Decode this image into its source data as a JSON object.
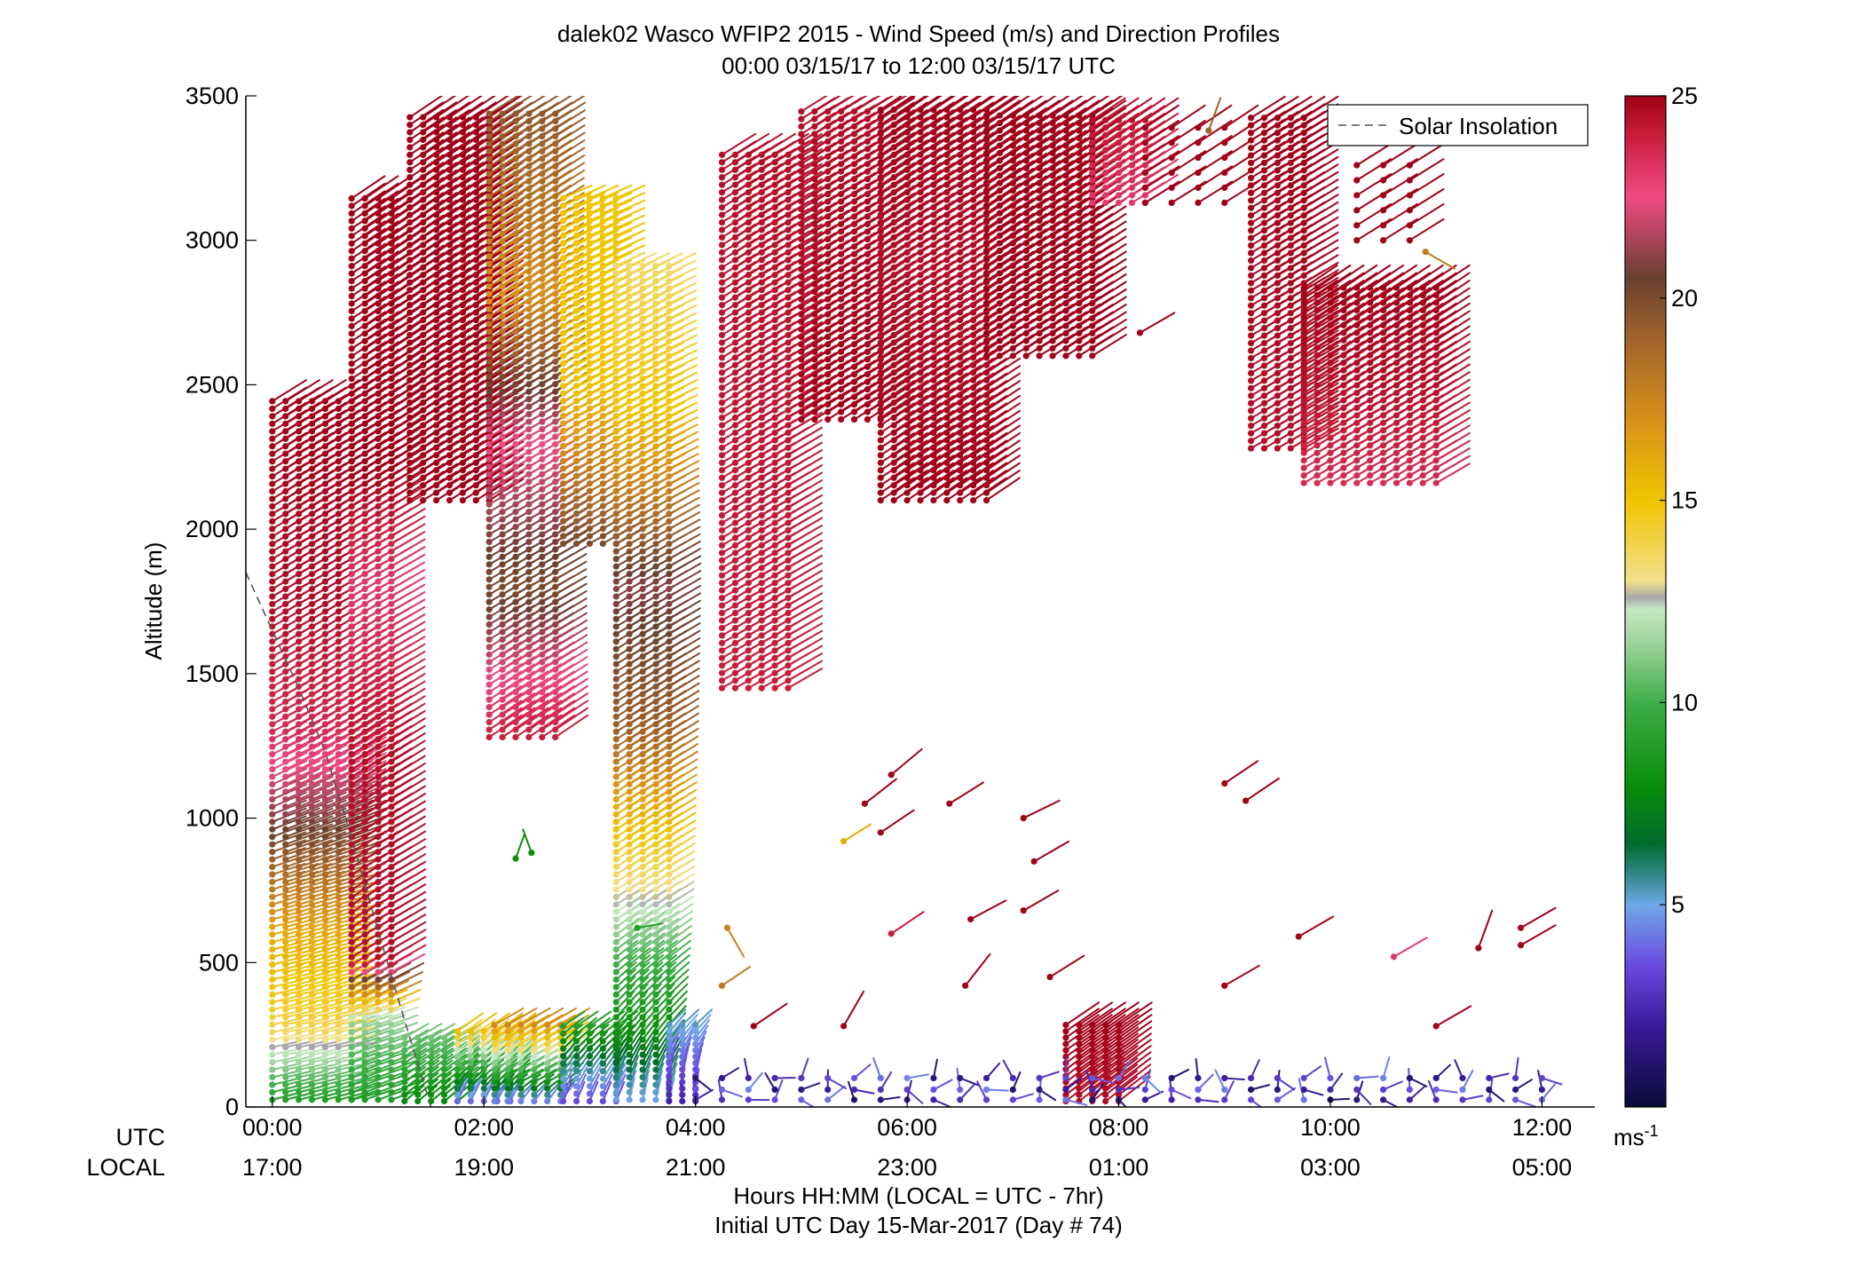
{
  "chart_data": {
    "type": "scatter",
    "title": "dalek02 Wasco WFIP2 2015 - Wind Speed (m/s) and Direction Profiles",
    "subtitle": "00:00 03/15/17 to 12:00 03/15/17  UTC",
    "ylabel": "Altitude (m)",
    "xlabel": "Hours HH:MM  (LOCAL = UTC - 7hr)",
    "xlabel2": "Initial UTC Day 15-Mar-2017 (Day # 74)",
    "row_label_utc": "UTC",
    "row_label_local": "LOCAL",
    "ylim": [
      0,
      3500
    ],
    "xlim_hours": [
      -0.25,
      12.5
    ],
    "yticks": [
      "0",
      "500",
      "1000",
      "1500",
      "2000",
      "2500",
      "3000",
      "3500"
    ],
    "xticks_utc": [
      "00:00",
      "02:00",
      "04:00",
      "06:00",
      "08:00",
      "10:00",
      "12:00"
    ],
    "xticks_local": [
      "17:00",
      "19:00",
      "21:00",
      "23:00",
      "01:00",
      "03:00",
      "05:00"
    ],
    "legend": {
      "entries": [
        "Solar Insolation"
      ],
      "position": "top-right"
    },
    "colorbar": {
      "ticks": [
        "5",
        "10",
        "15",
        "20",
        "25"
      ],
      "unit_label": "ms",
      "unit_exponent": "-1",
      "range": [
        0,
        25
      ],
      "stops": [
        {
          "v": 0,
          "c": "#0b0b3a"
        },
        {
          "v": 2,
          "c": "#3a1a9a"
        },
        {
          "v": 3.5,
          "c": "#6a4ae0"
        },
        {
          "v": 5,
          "c": "#6fa8e8"
        },
        {
          "v": 5.6,
          "c": "#3b8e9c"
        },
        {
          "v": 6.5,
          "c": "#006b2e"
        },
        {
          "v": 8,
          "c": "#0a8f0a"
        },
        {
          "v": 10,
          "c": "#3fae4a"
        },
        {
          "v": 11.5,
          "c": "#9fd49c"
        },
        {
          "v": 12.3,
          "c": "#c7e8c2"
        },
        {
          "v": 12.6,
          "c": "#a8a8a8"
        },
        {
          "v": 13,
          "c": "#f2e08c"
        },
        {
          "v": 15,
          "c": "#f0c400"
        },
        {
          "v": 17,
          "c": "#d8901a"
        },
        {
          "v": 19,
          "c": "#a0632c"
        },
        {
          "v": 20.5,
          "c": "#6a4030"
        },
        {
          "v": 22.5,
          "c": "#f04a84"
        },
        {
          "v": 24,
          "c": "#c81e3c"
        },
        {
          "v": 25,
          "c": "#a00018"
        }
      ]
    },
    "solar_insolation": {
      "style": "dashed",
      "color": "#555555",
      "hours": [
        -0.25,
        0.0,
        0.25,
        0.5,
        0.75,
        1.0,
        1.25,
        1.5
      ],
      "altitude_m": [
        1850,
        1650,
        1450,
        1230,
        930,
        610,
        300,
        0
      ]
    },
    "profile_segments": [
      {
        "t0": 0.0,
        "t1": 0.75,
        "dt": 0.125,
        "z0": 25,
        "z1": 2460,
        "dz": 26,
        "layers": [
          {
            "z": 0,
            "spd": 8.5,
            "dir": 255
          },
          {
            "z": 150,
            "spd": 11.5,
            "dir": 258
          },
          {
            "z": 280,
            "spd": 14,
            "dir": 258
          },
          {
            "z": 600,
            "spd": 16,
            "dir": 255
          },
          {
            "z": 800,
            "spd": 18.5,
            "dir": 252
          },
          {
            "z": 1000,
            "spd": 21,
            "dir": 248
          },
          {
            "z": 1300,
            "spd": 23.5,
            "dir": 242
          },
          {
            "z": 1700,
            "spd": 24.5,
            "dir": 240
          },
          {
            "z": 2460,
            "spd": 25,
            "dir": 238
          }
        ]
      },
      {
        "t0": 0.75,
        "t1": 1.2,
        "dt": 0.125,
        "z0": 25,
        "z1": 3160,
        "dz": 26,
        "layers": [
          {
            "z": 0,
            "spd": 8.5,
            "dir": 250
          },
          {
            "z": 300,
            "spd": 11.5,
            "dir": 250
          },
          {
            "z": 500,
            "spd": 24.5,
            "dir": 240
          },
          {
            "z": 1200,
            "spd": 24.5,
            "dir": 238
          },
          {
            "z": 1800,
            "spd": 23,
            "dir": 240
          },
          {
            "z": 2200,
            "spd": 25,
            "dir": 238
          },
          {
            "z": 3160,
            "spd": 25,
            "dir": 236
          }
        ]
      },
      {
        "t0": 1.25,
        "t1": 1.75,
        "dt": 0.125,
        "z0": 20,
        "z1": 250,
        "dz": 22,
        "layers": [
          {
            "z": 0,
            "spd": 7.5,
            "dir": 230
          },
          {
            "z": 250,
            "spd": 11,
            "dir": 240
          }
        ]
      },
      {
        "t0": 1.3,
        "t1": 2.05,
        "dt": 0.125,
        "z0": 2100,
        "z1": 3450,
        "dz": 26,
        "layers": [
          {
            "z": 2100,
            "spd": 25,
            "dir": 238
          },
          {
            "z": 3450,
            "spd": 25,
            "dir": 236
          }
        ]
      },
      {
        "t0": 1.75,
        "t1": 2.25,
        "dt": 0.125,
        "z0": 20,
        "z1": 280,
        "dz": 22,
        "layers": [
          {
            "z": 0,
            "spd": 3,
            "dir": 200
          },
          {
            "z": 100,
            "spd": 8,
            "dir": 230
          },
          {
            "z": 280,
            "spd": 16,
            "dir": 235
          }
        ]
      },
      {
        "t0": 2.05,
        "t1": 2.75,
        "dt": 0.125,
        "z0": 1280,
        "z1": 3450,
        "dz": 26,
        "layers": [
          {
            "z": 1280,
            "spd": 24,
            "dir": 236
          },
          {
            "z": 1800,
            "spd": 20,
            "dir": 240
          },
          {
            "z": 2300,
            "spd": 22.5,
            "dir": 240
          },
          {
            "z": 2800,
            "spd": 17,
            "dir": 236
          },
          {
            "z": 3450,
            "spd": 19.5,
            "dir": 238
          }
        ]
      },
      {
        "t0": 2.1,
        "t1": 2.75,
        "dt": 0.125,
        "z0": 20,
        "z1": 300,
        "dz": 22,
        "layers": [
          {
            "z": 0,
            "spd": 3.2,
            "dir": 210
          },
          {
            "z": 80,
            "spd": 8,
            "dir": 240
          },
          {
            "z": 300,
            "spd": 18,
            "dir": 240
          }
        ]
      },
      {
        "t0": 2.75,
        "t1": 3.25,
        "dt": 0.125,
        "z0": 1950,
        "z1": 3150,
        "dz": 26,
        "layers": [
          {
            "z": 1950,
            "spd": 20,
            "dir": 240
          },
          {
            "z": 2500,
            "spd": 15,
            "dir": 244
          },
          {
            "z": 3150,
            "spd": 15,
            "dir": 246
          }
        ]
      },
      {
        "t0": 2.75,
        "t1": 3.25,
        "dt": 0.125,
        "z0": 20,
        "z1": 300,
        "dz": 26,
        "layers": [
          {
            "z": 0,
            "spd": 3,
            "dir": 200
          },
          {
            "z": 300,
            "spd": 9.5,
            "dir": 238
          }
        ]
      },
      {
        "t0": 3.25,
        "t1": 3.75,
        "dt": 0.125,
        "z0": 25,
        "z1": 2920,
        "dz": 26,
        "layers": [
          {
            "z": 0,
            "spd": 4.5,
            "dir": 190
          },
          {
            "z": 250,
            "spd": 8,
            "dir": 220
          },
          {
            "z": 500,
            "spd": 10,
            "dir": 232
          },
          {
            "z": 700,
            "spd": 12.5,
            "dir": 238
          },
          {
            "z": 1000,
            "spd": 15.5,
            "dir": 238
          },
          {
            "z": 1300,
            "spd": 19,
            "dir": 238
          },
          {
            "z": 1800,
            "spd": 21,
            "dir": 240
          },
          {
            "z": 2400,
            "spd": 15,
            "dir": 244
          },
          {
            "z": 2920,
            "spd": 13.5,
            "dir": 244
          }
        ]
      },
      {
        "t0": 3.75,
        "t1": 4.0,
        "dt": 0.125,
        "z0": 20,
        "z1": 300,
        "dz": 22,
        "layers": [
          {
            "z": 0,
            "spd": 2,
            "dir": 170
          },
          {
            "z": 300,
            "spd": 5.5,
            "dir": 230
          }
        ]
      },
      {
        "t0": 4.25,
        "t1": 4.9,
        "dt": 0.125,
        "z0": 1450,
        "z1": 3320,
        "dz": 26,
        "layers": [
          {
            "z": 1450,
            "spd": 24,
            "dir": 240
          },
          {
            "z": 3320,
            "spd": 24.5,
            "dir": 238
          }
        ]
      },
      {
        "t0": 5.0,
        "t1": 5.75,
        "dt": 0.125,
        "z0": 2380,
        "z1": 3460,
        "dz": 26,
        "layers": [
          {
            "z": 2380,
            "spd": 25,
            "dir": 238
          },
          {
            "z": 3460,
            "spd": 24.5,
            "dir": 238
          }
        ]
      },
      {
        "t0": 5.75,
        "t1": 6.75,
        "dt": 0.125,
        "z0": 2100,
        "z1": 3460,
        "dz": 26,
        "layers": [
          {
            "z": 2100,
            "spd": 25,
            "dir": 236
          },
          {
            "z": 2900,
            "spd": 24.5,
            "dir": 238
          },
          {
            "z": 3460,
            "spd": 25,
            "dir": 236
          }
        ]
      },
      {
        "t0": 6.75,
        "t1": 7.75,
        "dt": 0.125,
        "z0": 2600,
        "z1": 3440,
        "dz": 26,
        "layers": [
          {
            "z": 2600,
            "spd": 25,
            "dir": 238
          },
          {
            "z": 3440,
            "spd": 25,
            "dir": 236
          }
        ]
      },
      {
        "t0": 7.75,
        "t1": 8.25,
        "dt": 0.125,
        "z0": 3130,
        "z1": 3440,
        "dz": 26,
        "layers": [
          {
            "z": 3130,
            "spd": 23,
            "dir": 238
          },
          {
            "z": 3440,
            "spd": 24.5,
            "dir": 236
          }
        ]
      },
      {
        "t0": 8.25,
        "t1": 9.0,
        "dt": 0.25,
        "z0": 3130,
        "z1": 3440,
        "dz": 52,
        "layers": [
          {
            "z": 3130,
            "spd": 25,
            "dir": 238
          },
          {
            "z": 3440,
            "spd": 25,
            "dir": 236
          }
        ]
      },
      {
        "t0": 9.25,
        "t1": 9.75,
        "dt": 0.125,
        "z0": 2280,
        "z1": 3440,
        "dz": 26,
        "layers": [
          {
            "z": 2280,
            "spd": 24.5,
            "dir": 240
          },
          {
            "z": 3440,
            "spd": 25,
            "dir": 238
          }
        ]
      },
      {
        "t0": 9.75,
        "t1": 11.0,
        "dt": 0.125,
        "z0": 2160,
        "z1": 2850,
        "dz": 26,
        "layers": [
          {
            "z": 2160,
            "spd": 23.5,
            "dir": 240
          },
          {
            "z": 2500,
            "spd": 24.5,
            "dir": 238
          },
          {
            "z": 2850,
            "spd": 25,
            "dir": 236
          }
        ]
      },
      {
        "t0": 10.25,
        "t1": 10.75,
        "dt": 0.25,
        "z0": 3000,
        "z1": 3300,
        "dz": 52,
        "layers": [
          {
            "z": 3000,
            "spd": 25,
            "dir": 238
          },
          {
            "z": 3300,
            "spd": 25,
            "dir": 238
          }
        ]
      },
      {
        "t0": 7.5,
        "t1": 8.0,
        "dt": 0.125,
        "z0": 20,
        "z1": 300,
        "dz": 22,
        "layers": [
          {
            "z": 0,
            "spd": 24.5,
            "dir": 232
          },
          {
            "z": 300,
            "spd": 25,
            "dir": 236
          }
        ]
      }
    ],
    "scattered_barbs": [
      {
        "t": 5.6,
        "z": 1050,
        "spd": 25,
        "dir": 232
      },
      {
        "t": 5.75,
        "z": 950,
        "spd": 25,
        "dir": 236
      },
      {
        "t": 5.85,
        "z": 1150,
        "spd": 25,
        "dir": 230
      },
      {
        "t": 5.4,
        "z": 920,
        "spd": 16,
        "dir": 238
      },
      {
        "t": 6.4,
        "z": 1050,
        "spd": 25,
        "dir": 238
      },
      {
        "t": 7.1,
        "z": 1000,
        "spd": 25,
        "dir": 244
      },
      {
        "t": 7.2,
        "z": 850,
        "spd": 25,
        "dir": 240
      },
      {
        "t": 7.1,
        "z": 680,
        "spd": 25,
        "dir": 240
      },
      {
        "t": 6.6,
        "z": 650,
        "spd": 25,
        "dir": 242
      },
      {
        "t": 5.85,
        "z": 600,
        "spd": 24,
        "dir": 236
      },
      {
        "t": 7.35,
        "z": 450,
        "spd": 25,
        "dir": 238
      },
      {
        "t": 6.55,
        "z": 420,
        "spd": 25,
        "dir": 218
      },
      {
        "t": 9.0,
        "z": 1120,
        "spd": 25,
        "dir": 236
      },
      {
        "t": 9.2,
        "z": 1060,
        "spd": 25,
        "dir": 236
      },
      {
        "t": 9.0,
        "z": 420,
        "spd": 25,
        "dir": 240
      },
      {
        "t": 9.7,
        "z": 590,
        "spd": 25,
        "dir": 240
      },
      {
        "t": 10.6,
        "z": 520,
        "spd": 23,
        "dir": 240
      },
      {
        "t": 11.4,
        "z": 550,
        "spd": 25,
        "dir": 200
      },
      {
        "t": 11.8,
        "z": 620,
        "spd": 25,
        "dir": 240
      },
      {
        "t": 11.8,
        "z": 560,
        "spd": 25,
        "dir": 240
      },
      {
        "t": 11.0,
        "z": 280,
        "spd": 25,
        "dir": 240
      },
      {
        "t": 8.2,
        "z": 2680,
        "spd": 25,
        "dir": 240
      },
      {
        "t": 4.3,
        "z": 620,
        "spd": 17.5,
        "dir": 330
      },
      {
        "t": 4.25,
        "z": 420,
        "spd": 18,
        "dir": 236
      },
      {
        "t": 4.55,
        "z": 280,
        "spd": 25,
        "dir": 236
      },
      {
        "t": 5.4,
        "z": 280,
        "spd": 25,
        "dir": 210
      },
      {
        "t": 8.85,
        "z": 3380,
        "spd": 19,
        "dir": 200
      },
      {
        "t": 10.9,
        "z": 2960,
        "spd": 18,
        "dir": 300
      },
      {
        "t": 3.45,
        "z": 620,
        "spd": 9,
        "dir": 260
      },
      {
        "t": 2.3,
        "z": 860,
        "spd": 8,
        "dir": 200
      },
      {
        "t": 2.45,
        "z": 880,
        "spd": 8,
        "dir": 160
      }
    ],
    "surface_barbs": {
      "t0": 4.0,
      "t1": 12.0,
      "dt": 0.25,
      "z": [
        25,
        60,
        100
      ],
      "spd_range": [
        1,
        4.5
      ],
      "dir_range": [
        150,
        320
      ]
    }
  }
}
